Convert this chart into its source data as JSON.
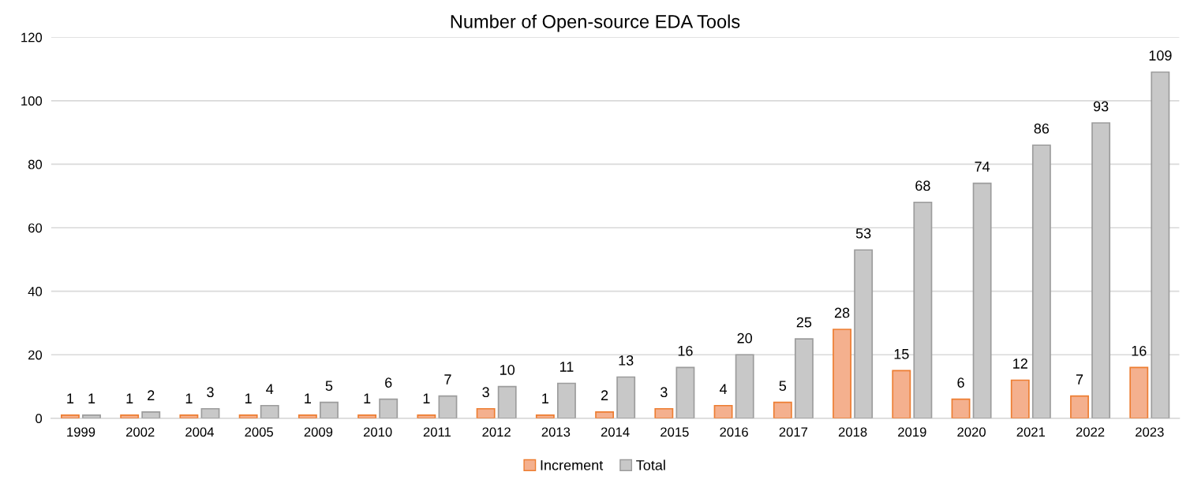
{
  "chart_data": {
    "type": "bar",
    "title": "Number of Open-source EDA Tools",
    "categories": [
      "1999",
      "2002",
      "2004",
      "2005",
      "2009",
      "2010",
      "2011",
      "2012",
      "2013",
      "2014",
      "2015",
      "2016",
      "2017",
      "2018",
      "2019",
      "2020",
      "2021",
      "2022",
      "2023"
    ],
    "series": [
      {
        "name": "Increment",
        "color": "#f4b08e",
        "values": [
          1,
          1,
          1,
          1,
          1,
          1,
          1,
          3,
          1,
          2,
          3,
          4,
          5,
          28,
          15,
          6,
          12,
          7,
          16
        ]
      },
      {
        "name": "Total",
        "color": "#c8c8c8",
        "values": [
          1,
          2,
          3,
          4,
          5,
          6,
          7,
          10,
          11,
          13,
          16,
          20,
          25,
          53,
          68,
          74,
          86,
          93,
          109
        ]
      }
    ],
    "ylim": [
      0,
      120
    ],
    "yticks": [
      0,
      20,
      40,
      60,
      80,
      100,
      120
    ],
    "grid": "y",
    "legend": "bottom",
    "data_labels": true
  }
}
